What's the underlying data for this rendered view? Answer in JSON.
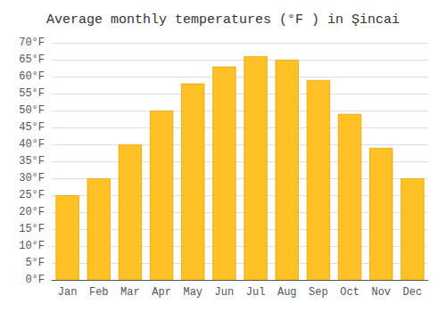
{
  "chart_data": {
    "type": "bar",
    "title": "Average monthly temperatures (°F ) in Şincai",
    "categories": [
      "Jan",
      "Feb",
      "Mar",
      "Apr",
      "May",
      "Jun",
      "Jul",
      "Aug",
      "Sep",
      "Oct",
      "Nov",
      "Dec"
    ],
    "values": [
      25,
      30,
      40,
      50,
      58,
      63,
      66,
      65,
      59,
      49,
      39,
      30
    ],
    "color": "#FFC125",
    "ylim": [
      0,
      70
    ],
    "yticks": [
      {
        "value": 0,
        "label": "0°F"
      },
      {
        "value": 5,
        "label": "5°F"
      },
      {
        "value": 10,
        "label": "10°F"
      },
      {
        "value": 15,
        "label": "15°F"
      },
      {
        "value": 20,
        "label": "20°F"
      },
      {
        "value": 25,
        "label": "25°F"
      },
      {
        "value": 30,
        "label": "30°F"
      },
      {
        "value": 35,
        "label": "35°F"
      },
      {
        "value": 40,
        "label": "40°F"
      },
      {
        "value": 45,
        "label": "45°F"
      },
      {
        "value": 50,
        "label": "50°F"
      },
      {
        "value": 55,
        "label": "55°F"
      },
      {
        "value": 60,
        "label": "60°F"
      },
      {
        "value": 65,
        "label": "65°F"
      },
      {
        "value": 70,
        "label": "70°F"
      }
    ],
    "grid": true
  }
}
